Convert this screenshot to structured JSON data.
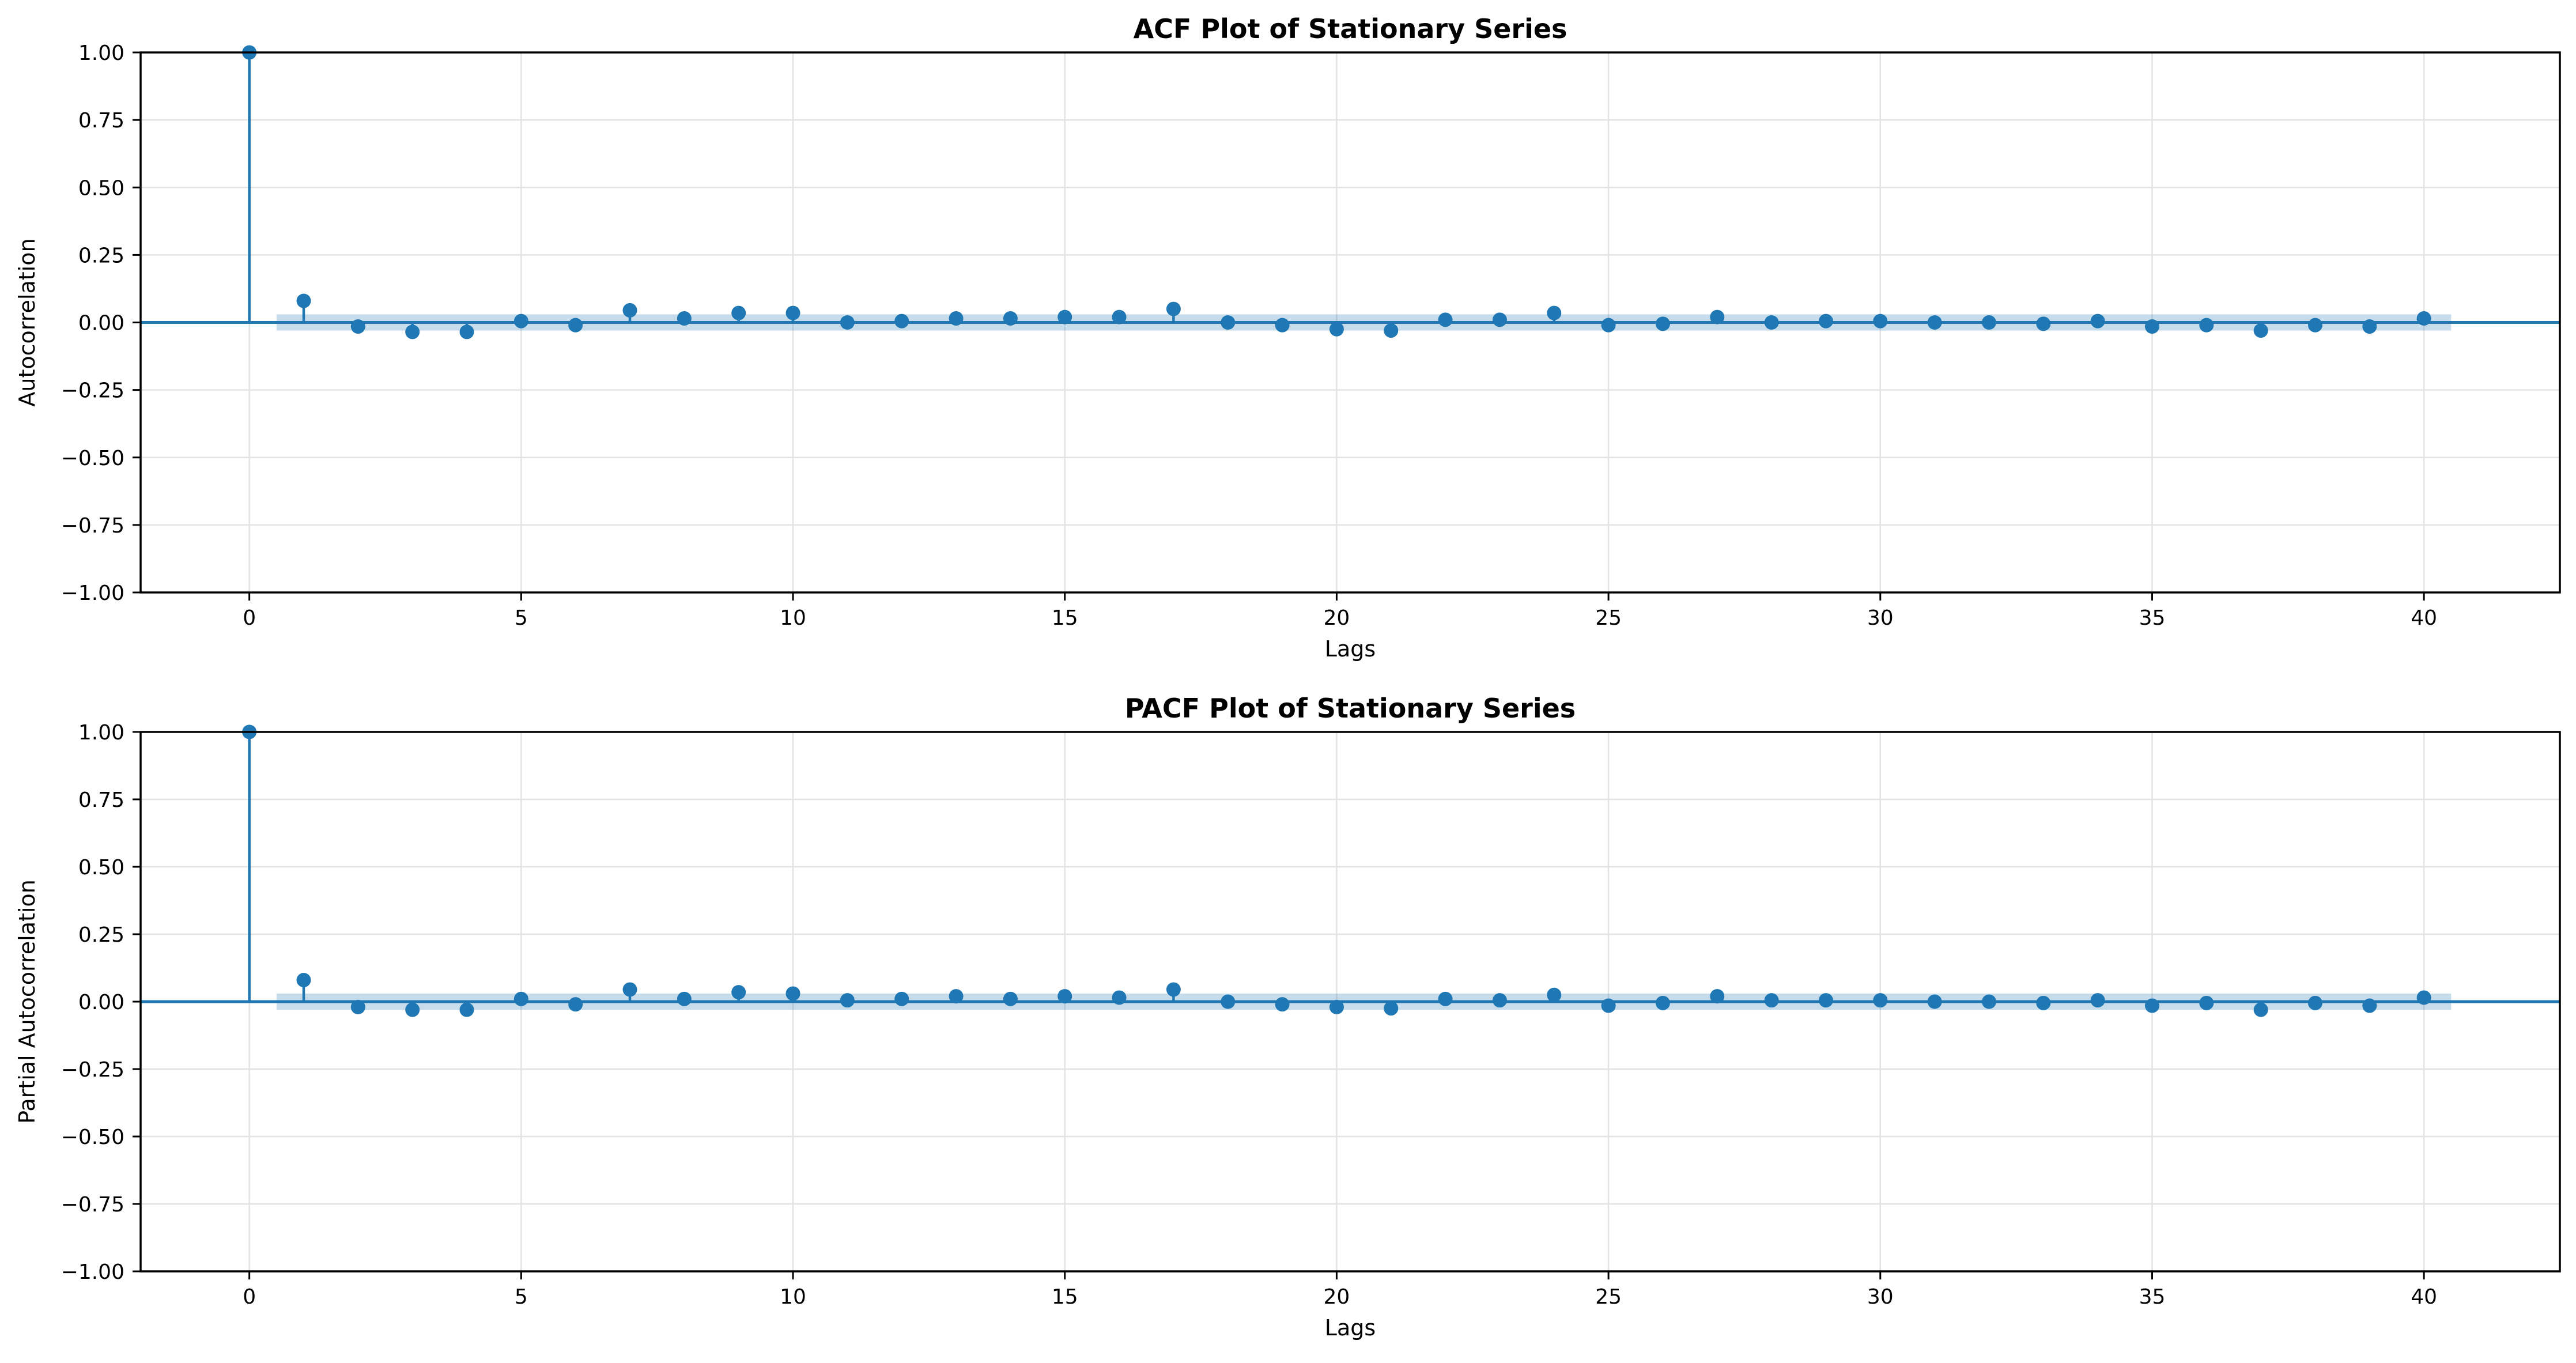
{
  "chart_data": [
    {
      "type": "stem",
      "title": "ACF Plot of Stationary Series",
      "xlabel": "Lags",
      "ylabel": "Autocorrelation",
      "xlim": [
        -2,
        42.5
      ],
      "ylim": [
        -1.0,
        1.0
      ],
      "xticks": [
        0,
        5,
        10,
        15,
        20,
        25,
        30,
        35,
        40
      ],
      "yticks": [
        1.0,
        0.75,
        0.5,
        0.25,
        0.0,
        -0.25,
        -0.5,
        -0.75,
        -1.0
      ],
      "ytick_labels": [
        "1.00",
        "0.75",
        "0.50",
        "0.25",
        "0.00",
        "−0.25",
        "−0.50",
        "−0.75",
        "−1.00"
      ],
      "xtick_labels": [
        "0",
        "5",
        "10",
        "15",
        "20",
        "25",
        "30",
        "35",
        "40"
      ],
      "grid": true,
      "confidence_band": {
        "start": 0.5,
        "end": 40.5,
        "upper": 0.03,
        "lower": -0.03
      },
      "lags": [
        0,
        1,
        2,
        3,
        4,
        5,
        6,
        7,
        8,
        9,
        10,
        11,
        12,
        13,
        14,
        15,
        16,
        17,
        18,
        19,
        20,
        21,
        22,
        23,
        24,
        25,
        26,
        27,
        28,
        29,
        30,
        31,
        32,
        33,
        34,
        35,
        36,
        37,
        38,
        39,
        40
      ],
      "values": [
        1.0,
        0.08,
        -0.015,
        -0.035,
        -0.035,
        0.005,
        -0.01,
        0.045,
        0.015,
        0.035,
        0.035,
        0.0,
        0.005,
        0.015,
        0.015,
        0.02,
        0.02,
        0.05,
        0.0,
        -0.01,
        -0.025,
        -0.03,
        0.01,
        0.01,
        0.035,
        -0.01,
        -0.005,
        0.02,
        0.0,
        0.005,
        0.005,
        0.0,
        0.0,
        -0.005,
        0.005,
        -0.015,
        -0.01,
        -0.03,
        -0.01,
        -0.015,
        0.015
      ]
    },
    {
      "type": "stem",
      "title": "PACF Plot of Stationary Series",
      "xlabel": "Lags",
      "ylabel": "Partial Autocorrelation",
      "xlim": [
        -2,
        42.5
      ],
      "ylim": [
        -1.0,
        1.0
      ],
      "xticks": [
        0,
        5,
        10,
        15,
        20,
        25,
        30,
        35,
        40
      ],
      "yticks": [
        1.0,
        0.75,
        0.5,
        0.25,
        0.0,
        -0.25,
        -0.5,
        -0.75,
        -1.0
      ],
      "ytick_labels": [
        "1.00",
        "0.75",
        "0.50",
        "0.25",
        "0.00",
        "−0.25",
        "−0.50",
        "−0.75",
        "−1.00"
      ],
      "xtick_labels": [
        "0",
        "5",
        "10",
        "15",
        "20",
        "25",
        "30",
        "35",
        "40"
      ],
      "grid": true,
      "confidence_band": {
        "start": 0.5,
        "end": 40.5,
        "upper": 0.03,
        "lower": -0.03
      },
      "lags": [
        0,
        1,
        2,
        3,
        4,
        5,
        6,
        7,
        8,
        9,
        10,
        11,
        12,
        13,
        14,
        15,
        16,
        17,
        18,
        19,
        20,
        21,
        22,
        23,
        24,
        25,
        26,
        27,
        28,
        29,
        30,
        31,
        32,
        33,
        34,
        35,
        36,
        37,
        38,
        39,
        40
      ],
      "values": [
        1.0,
        0.08,
        -0.02,
        -0.03,
        -0.03,
        0.01,
        -0.01,
        0.045,
        0.01,
        0.035,
        0.03,
        0.005,
        0.01,
        0.02,
        0.01,
        0.02,
        0.015,
        0.045,
        0.0,
        -0.01,
        -0.02,
        -0.025,
        0.01,
        0.005,
        0.025,
        -0.015,
        -0.005,
        0.02,
        0.005,
        0.005,
        0.005,
        0.0,
        0.0,
        -0.005,
        0.005,
        -0.015,
        -0.005,
        -0.03,
        -0.005,
        -0.015,
        0.015
      ]
    }
  ],
  "colors": {
    "series": "#1f77b4",
    "band": "#1f77b4",
    "grid": "#e3e3e3",
    "frame": "#000000"
  }
}
